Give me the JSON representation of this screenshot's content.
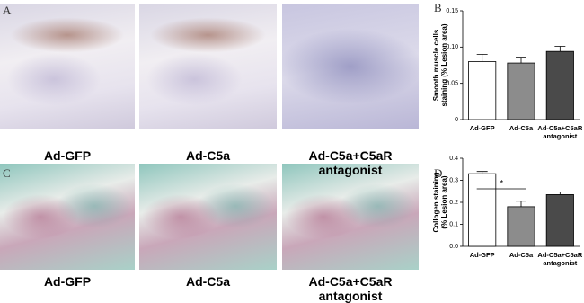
{
  "panels": [
    {
      "label": "A",
      "captions": [
        "Ad-GFP",
        "Ad-C5a",
        "Ad-C5a+C5aR antagonist"
      ]
    },
    {
      "label": "C",
      "captions": [
        "Ad-GFP",
        "Ad-C5a",
        "Ad-C5a+C5aR antagonist"
      ]
    }
  ],
  "chart_data": [
    {
      "type": "bar",
      "panel": "B",
      "ylabel": [
        "Smooth muscle cells",
        "staining (% Lesion area)"
      ],
      "categories": [
        "Ad-GFP",
        "Ad-C5a",
        "Ad-C5a+C5aR antagonist"
      ],
      "values": [
        0.08,
        0.078,
        0.094
      ],
      "errors": [
        0.01,
        0.008,
        0.007
      ],
      "colors": [
        "#ffffff",
        "#8c8c8c",
        "#4a4a4a"
      ],
      "ylim": [
        0,
        0.15
      ],
      "yticks": [
        0,
        0.05,
        {
          "value": 0.1,
          "label": "0.10"
        },
        0.15
      ]
    },
    {
      "type": "bar",
      "panel": "D",
      "ylabel": [
        "Collogen staining",
        "(% Lesion area)"
      ],
      "categories": [
        "Ad-GFP",
        "Ad-C5a",
        "Ad-C5a+C5aR antagonist"
      ],
      "values": [
        0.33,
        0.18,
        0.235
      ],
      "errors": [
        0.01,
        0.025,
        0.012
      ],
      "colors": [
        "#ffffff",
        "#8c8c8c",
        "#4a4a4a"
      ],
      "ylim": [
        0,
        0.4
      ],
      "yticks": [
        {
          "value": 0,
          "label": "0.0"
        },
        0.1,
        0.2,
        0.3,
        0.4
      ],
      "annotation": "*"
    }
  ]
}
